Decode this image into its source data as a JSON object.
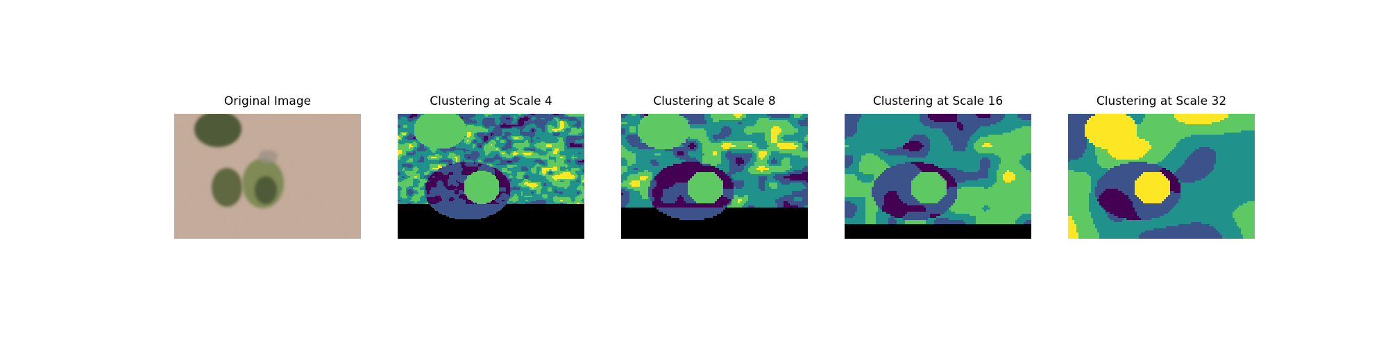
{
  "figure": {
    "panels": [
      {
        "title": "Original Image",
        "kind": "photo"
      },
      {
        "title": "Clustering at Scale 4",
        "kind": "clusters",
        "scale": 4
      },
      {
        "title": "Clustering at Scale 8",
        "kind": "clusters",
        "scale": 8
      },
      {
        "title": "Clustering at Scale 16",
        "kind": "clusters",
        "scale": 16
      },
      {
        "title": "Clustering at Scale 32",
        "kind": "clusters",
        "scale": 32
      }
    ],
    "colormap": [
      "#440154",
      "#3b528b",
      "#21918c",
      "#5ec962",
      "#fde725"
    ],
    "photo_colors": {
      "ground": "#cdb2a1",
      "shrub": "#4f5a38",
      "shrub_light": "#7f8a57"
    }
  }
}
